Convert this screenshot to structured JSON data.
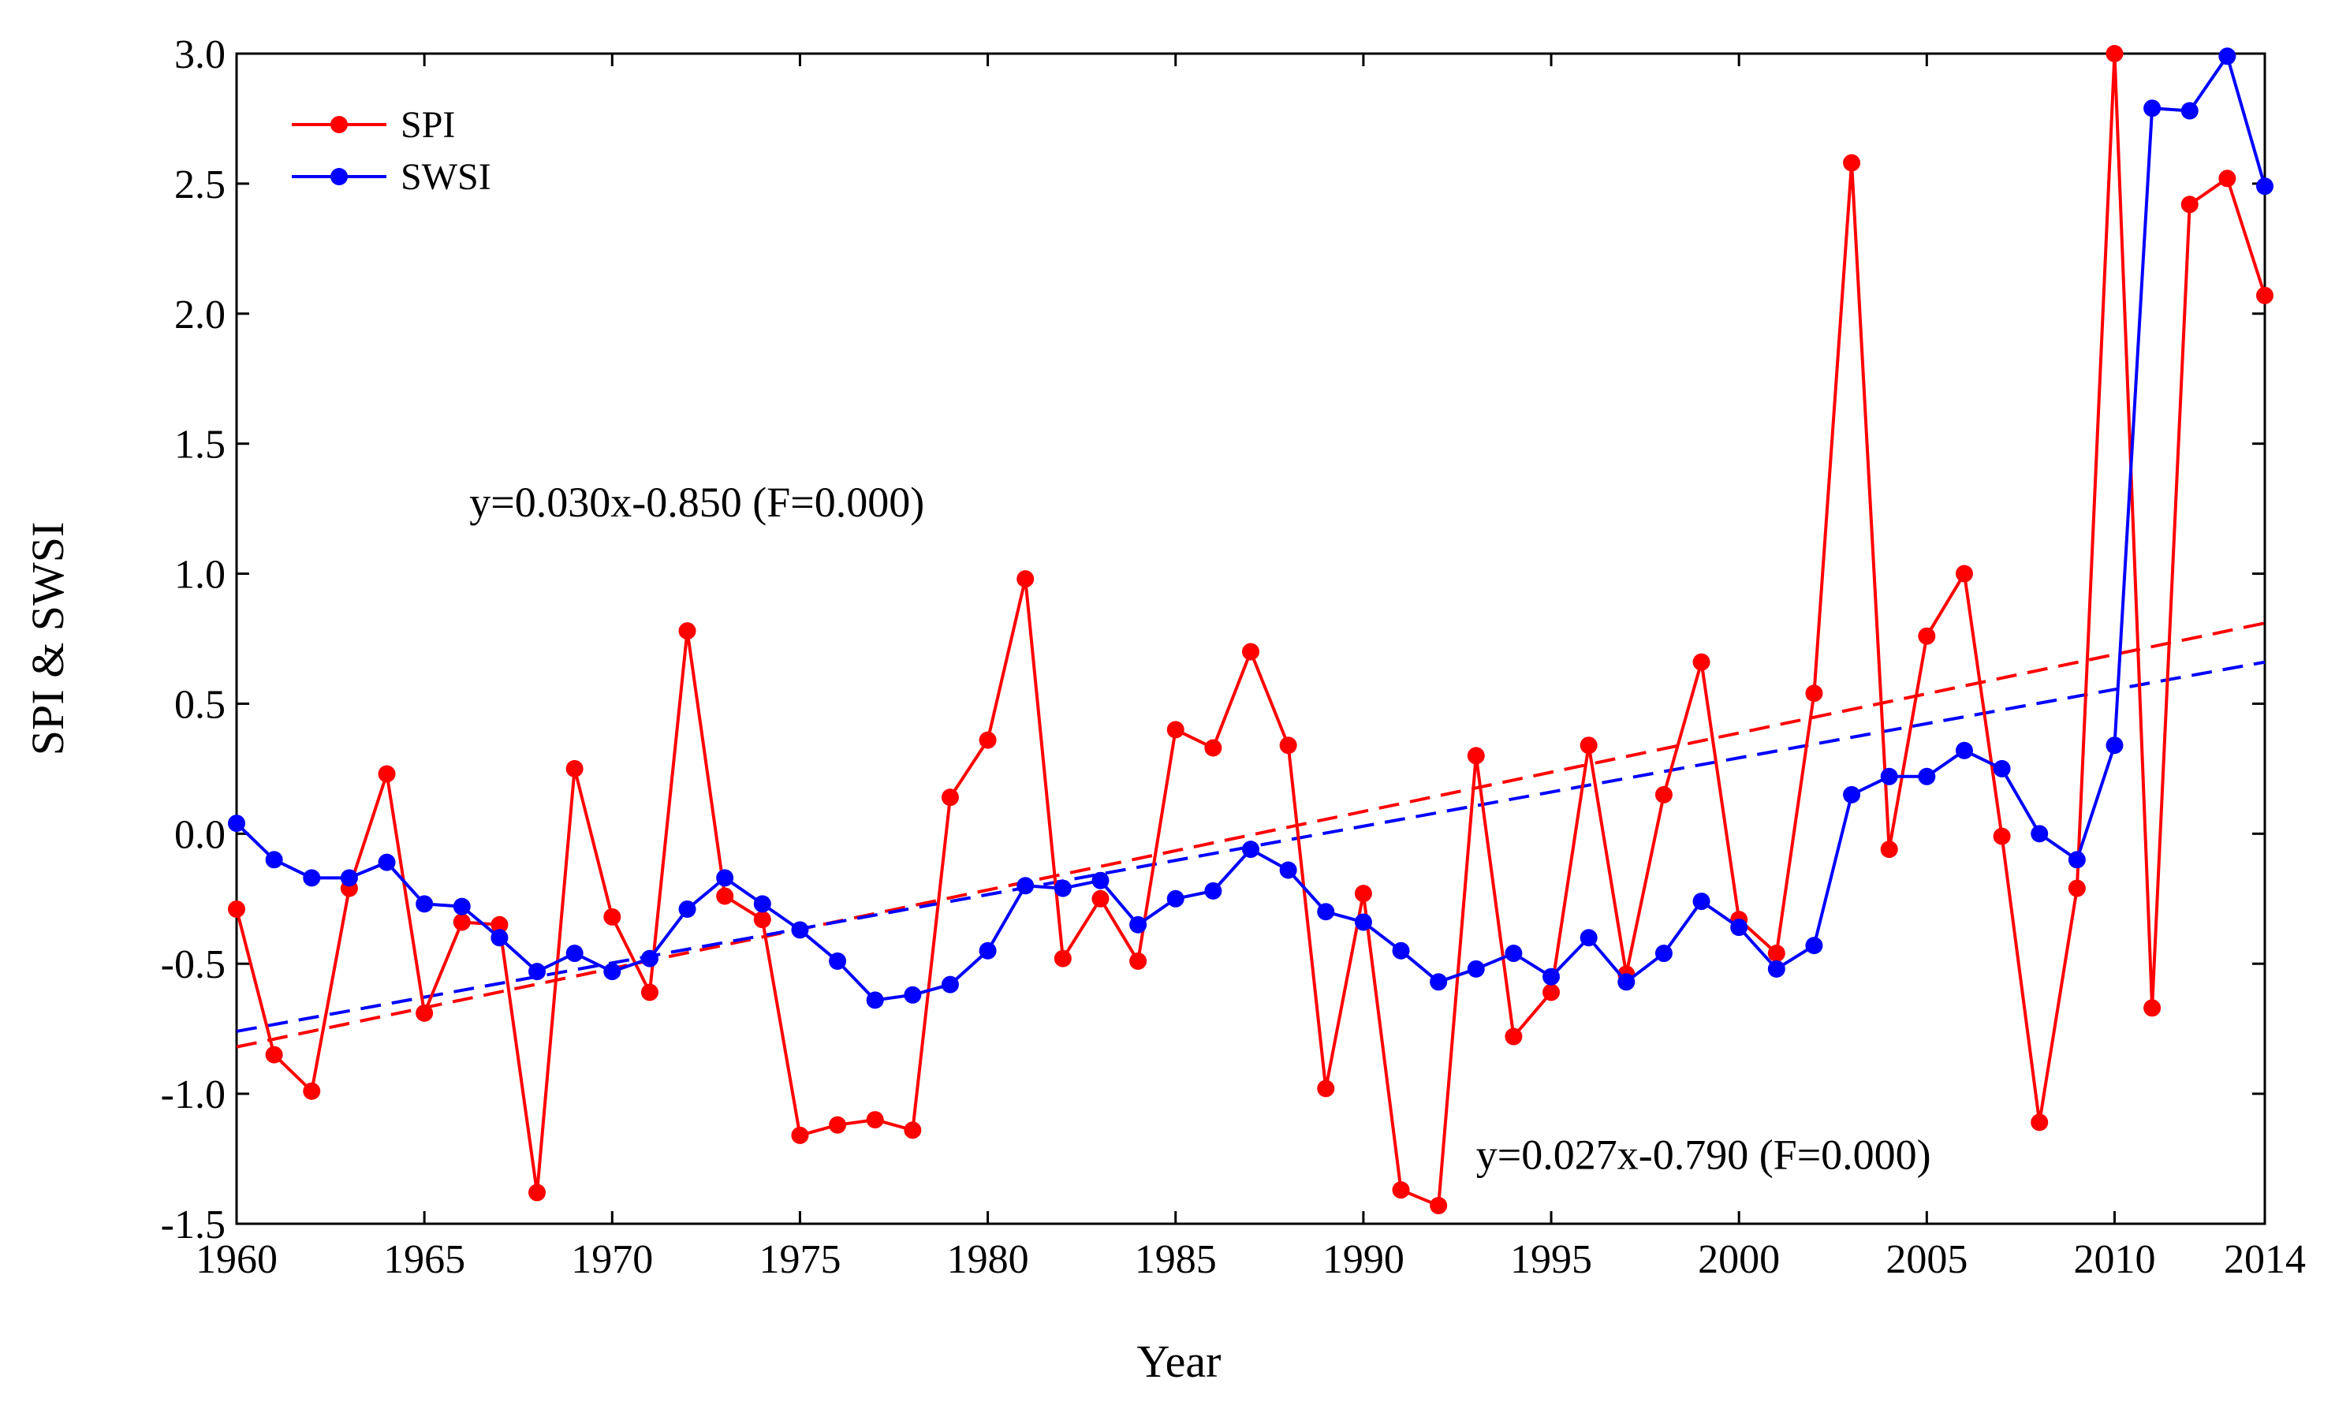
{
  "chart_data": {
    "type": "line",
    "title": "",
    "xlabel": "Year",
    "ylabel": "SPI & SWSI",
    "xlim": [
      1960,
      2014
    ],
    "ylim": [
      -1.5,
      3.0
    ],
    "x_ticks": [
      1960,
      1965,
      1970,
      1975,
      1980,
      1985,
      1990,
      1995,
      2000,
      2005,
      2010,
      2014
    ],
    "y_ticks": [
      -1.5,
      -1.0,
      -0.5,
      0.0,
      0.5,
      1.0,
      1.5,
      2.0,
      2.5,
      3.0
    ],
    "y_tick_labels": [
      "-1.5",
      "-1.0",
      "-0.5",
      "0.0",
      "0.5",
      "1.0",
      "1.5",
      "2.0",
      "2.5",
      "3.0"
    ],
    "legend_position": "top-left",
    "x": [
      1960,
      1961,
      1962,
      1963,
      1964,
      1965,
      1966,
      1967,
      1968,
      1969,
      1970,
      1971,
      1972,
      1973,
      1974,
      1975,
      1976,
      1977,
      1978,
      1979,
      1980,
      1981,
      1982,
      1983,
      1984,
      1985,
      1986,
      1987,
      1988,
      1989,
      1990,
      1991,
      1992,
      1993,
      1994,
      1995,
      1996,
      1997,
      1998,
      1999,
      2000,
      2001,
      2002,
      2003,
      2004,
      2005,
      2006,
      2007,
      2008,
      2009,
      2010,
      2011,
      2012,
      2013,
      2014
    ],
    "series": [
      {
        "name": "SPI",
        "color": "#ff0000",
        "values": [
          -0.29,
          -0.85,
          -0.99,
          -0.21,
          0.23,
          -0.69,
          -0.34,
          -0.35,
          -1.38,
          0.25,
          -0.32,
          -0.61,
          0.78,
          -0.24,
          -0.33,
          -1.16,
          -1.12,
          -1.1,
          -1.14,
          0.14,
          0.36,
          0.98,
          -0.48,
          -0.25,
          -0.49,
          0.4,
          0.33,
          0.7,
          0.34,
          -0.98,
          -0.23,
          -1.37,
          -1.43,
          0.3,
          -0.78,
          -0.61,
          0.34,
          -0.54,
          0.15,
          0.66,
          -0.33,
          -0.46,
          0.54,
          2.58,
          -0.06,
          0.76,
          1.0,
          -0.01,
          -1.11,
          -0.21,
          3.0,
          -0.67,
          2.42,
          2.52,
          2.07
        ]
      },
      {
        "name": "SWSI",
        "color": "#0000ff",
        "values": [
          0.04,
          -0.1,
          -0.17,
          -0.17,
          -0.11,
          -0.27,
          -0.28,
          -0.4,
          -0.53,
          -0.46,
          -0.53,
          -0.48,
          -0.29,
          -0.17,
          -0.27,
          -0.37,
          -0.49,
          -0.64,
          -0.62,
          -0.58,
          -0.45,
          -0.2,
          -0.21,
          -0.18,
          -0.35,
          -0.25,
          -0.22,
          -0.06,
          -0.14,
          -0.3,
          -0.34,
          -0.45,
          -0.57,
          -0.52,
          -0.46,
          -0.55,
          -0.4,
          -0.57,
          -0.46,
          -0.26,
          -0.36,
          -0.52,
          -0.43,
          0.15,
          0.22,
          0.22,
          0.32,
          0.25,
          0.0,
          -0.1,
          0.34,
          2.79,
          2.78,
          2.99,
          2.49
        ]
      }
    ],
    "trend_lines": [
      {
        "name": "SPI trend",
        "color": "#ff0000",
        "x": [
          1960,
          2014
        ],
        "y": [
          -0.82,
          0.81
        ]
      },
      {
        "name": "SWSI trend",
        "color": "#0000ff",
        "x": [
          1960,
          2014
        ],
        "y": [
          -0.76,
          0.66
        ]
      }
    ],
    "annotations": [
      {
        "text": "y=0.030x-0.850 (F=0.000)",
        "x": 1966.2,
        "y": 1.22,
        "anchor": "start"
      },
      {
        "text": "y=0.027x-0.790 (F=0.000)",
        "x": 1993.0,
        "y": -1.29,
        "anchor": "start"
      }
    ]
  }
}
